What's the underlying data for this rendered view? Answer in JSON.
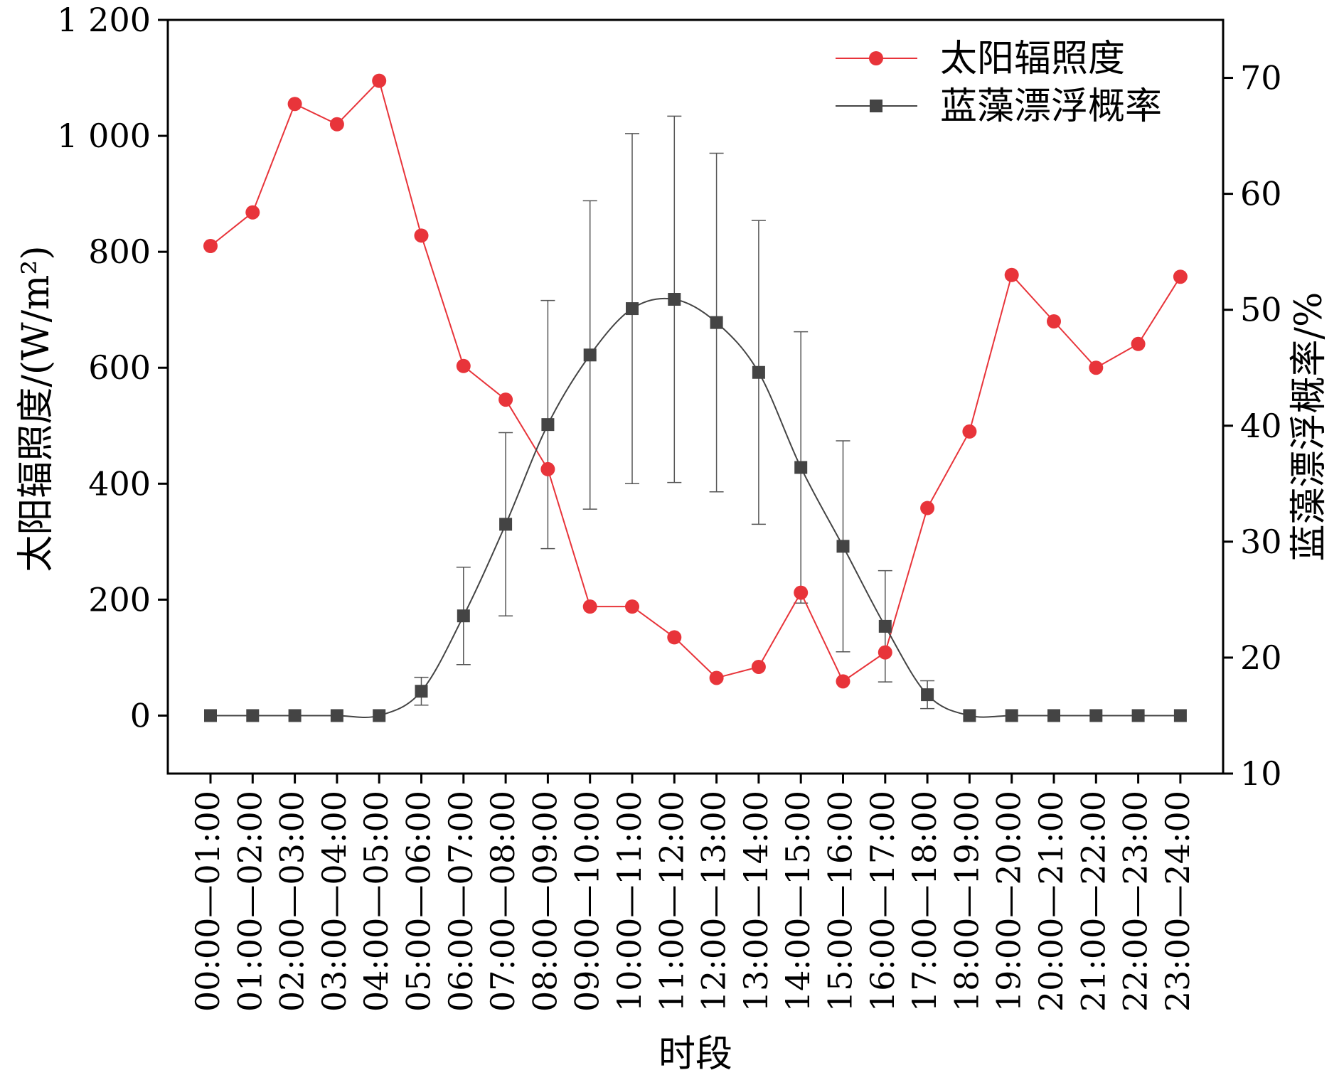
{
  "chart_data": {
    "type": "line",
    "xlabel": "时段",
    "ylabel_left": "太阳辐照度/(W/m²)",
    "ylabel_right": "蓝藻漂浮概率/%",
    "ylim_left": [
      -100,
      1200
    ],
    "yticks_left": [
      0,
      200,
      400,
      600,
      800,
      1000,
      1200
    ],
    "yticks_left_labels": [
      "0",
      "200",
      "400",
      "600",
      "800",
      "1 000",
      "1 200"
    ],
    "ylim_right": [
      10,
      75
    ],
    "yticks_right": [
      10,
      20,
      30,
      40,
      50,
      60,
      70
    ],
    "yticks_right_labels": [
      "10",
      "20",
      "30",
      "40",
      "50",
      "60",
      "70"
    ],
    "legend_position": "top-right",
    "categories": [
      "00:00—01:00",
      "01:00—02:00",
      "02:00—03:00",
      "03:00—04:00",
      "04:00—05:00",
      "05:00—06:00",
      "06:00—07:00",
      "07:00—08:00",
      "08:00—09:00",
      "09:00—10:00",
      "10:00—11:00",
      "11:00—12:00",
      "12:00—13:00",
      "13:00—14:00",
      "14:00—15:00",
      "15:00—16:00",
      "16:00—17:00",
      "17:00—18:00",
      "18:00—19:00",
      "19:00—20:00",
      "20:00—21:00",
      "21:00—22:00",
      "22:00—23:00",
      "23:00—24:00"
    ],
    "series": [
      {
        "name": "太阳辐照度",
        "axis": "left",
        "color": "#e8343a",
        "marker": "circle",
        "values": [
          810,
          868,
          1055,
          1020,
          1095,
          828,
          603,
          545,
          425,
          188,
          188,
          135,
          65,
          84,
          212,
          59,
          109,
          358,
          490,
          760,
          680,
          600,
          641,
          757
        ]
      },
      {
        "name": "蓝藻漂浮概率",
        "axis": "right",
        "color": "#444444",
        "marker": "square",
        "values": [
          15,
          15,
          15,
          15,
          15,
          17.1,
          23.6,
          31.5,
          40.1,
          46.1,
          50.1,
          50.9,
          48.9,
          44.6,
          36.4,
          29.6,
          22.7,
          16.8,
          15,
          15,
          15,
          15,
          15,
          15
        ],
        "error": [
          0,
          0,
          0,
          0,
          0,
          1.2,
          4.2,
          7.9,
          10.7,
          13.3,
          15.1,
          15.8,
          14.6,
          13.1,
          11.7,
          9.1,
          4.8,
          1.2,
          0,
          0,
          0,
          0,
          0,
          0
        ]
      }
    ]
  }
}
